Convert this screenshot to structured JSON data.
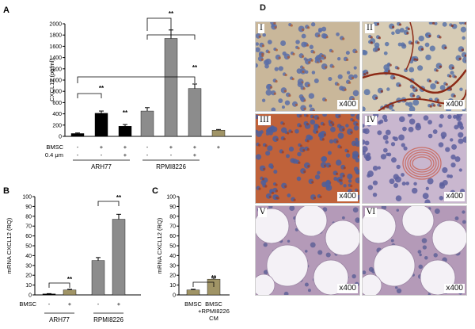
{
  "panels": {
    "a": {
      "label": "A"
    },
    "b": {
      "label": "B"
    },
    "c": {
      "label": "C"
    },
    "d": {
      "label": "D"
    }
  },
  "colors": {
    "black": "#000000",
    "gray": "#8c8c8c",
    "olive": "#a09466",
    "axis": "#000000"
  },
  "chart_data": [
    {
      "panel": "A",
      "type": "bar",
      "ylabel": "CXCL12 (pg/ml)",
      "ylim": [
        0,
        2000
      ],
      "yticks": [
        0,
        200,
        400,
        600,
        800,
        1000,
        1200,
        1400,
        1600,
        1800,
        2000
      ],
      "condition_rows": [
        {
          "name": "BMSC",
          "values": [
            "-",
            "+",
            "+",
            "-",
            "+",
            "+",
            "+"
          ]
        },
        {
          "name": "0.4 μm",
          "values": [
            "-",
            "-",
            "+",
            "-",
            "-",
            "+",
            ""
          ]
        }
      ],
      "groups": [
        {
          "name": "ARH77",
          "bars": [
            0,
            1,
            2
          ]
        },
        {
          "name": "RPMI8226",
          "bars": [
            3,
            4,
            5
          ]
        }
      ],
      "bars": [
        {
          "value": 50,
          "error": 10,
          "color": "black"
        },
        {
          "value": 410,
          "error": 40,
          "color": "black"
        },
        {
          "value": 180,
          "error": 30,
          "color": "black"
        },
        {
          "value": 450,
          "error": 60,
          "color": "gray"
        },
        {
          "value": 1740,
          "error": 150,
          "color": "gray"
        },
        {
          "value": 850,
          "error": 80,
          "color": "gray"
        },
        {
          "value": 110,
          "error": 12,
          "color": "olive"
        }
      ],
      "annotations": [
        "**",
        "**",
        "**",
        "**"
      ]
    },
    {
      "panel": "B",
      "type": "bar",
      "ylabel": "mRNA CXCL12 (RQ)",
      "ylim": [
        0,
        100
      ],
      "yticks": [
        0,
        10,
        20,
        30,
        40,
        50,
        60,
        70,
        80,
        90,
        100
      ],
      "condition_rows": [
        {
          "name": "BMSC",
          "values": [
            "-",
            "+",
            "-",
            "+"
          ]
        }
      ],
      "groups": [
        {
          "name": "ARH77",
          "bars": [
            0,
            1
          ]
        },
        {
          "name": "RPMI8226",
          "bars": [
            2,
            3
          ]
        }
      ],
      "bars": [
        {
          "value": 1,
          "error": 0.3,
          "color": "black"
        },
        {
          "value": 5,
          "error": 0.7,
          "color": "olive"
        },
        {
          "value": 35,
          "error": 3,
          "color": "gray"
        },
        {
          "value": 77,
          "error": 5,
          "color": "gray"
        }
      ],
      "annotations": [
        "**",
        "**"
      ]
    },
    {
      "panel": "C",
      "type": "bar",
      "ylabel": "mRNA CXCL12 (RQ)",
      "ylim": [
        0,
        100
      ],
      "yticks": [
        0,
        10,
        20,
        30,
        40,
        50,
        60,
        70,
        80,
        90,
        100
      ],
      "categories": [
        "BMSC",
        "BMSC +RPMI8226 CM"
      ],
      "category_lines": [
        [
          "BMSC"
        ],
        [
          "BMSC",
          "+RPMI8226",
          "CM"
        ]
      ],
      "bars": [
        {
          "value": 5,
          "error": 0.7,
          "color": "olive"
        },
        {
          "value": 16,
          "error": 1.2,
          "color": "olive"
        }
      ],
      "annotations": [
        "**"
      ]
    }
  ],
  "micrographs": [
    {
      "label": "I",
      "magnification": "x400",
      "stain": "brown-on-blue cells"
    },
    {
      "label": "II",
      "magnification": "x400",
      "stain": "brown vessels on blue"
    },
    {
      "label": "III",
      "magnification": "x400",
      "stain": "dense orange-brown cells"
    },
    {
      "label": "IV",
      "magnification": "x400",
      "stain": "purple cells with pink vessel"
    },
    {
      "label": "V",
      "magnification": "x400",
      "stain": "adipocytes, pale purple"
    },
    {
      "label": "VI",
      "magnification": "x400",
      "stain": "adipocytes, pale purple"
    }
  ]
}
